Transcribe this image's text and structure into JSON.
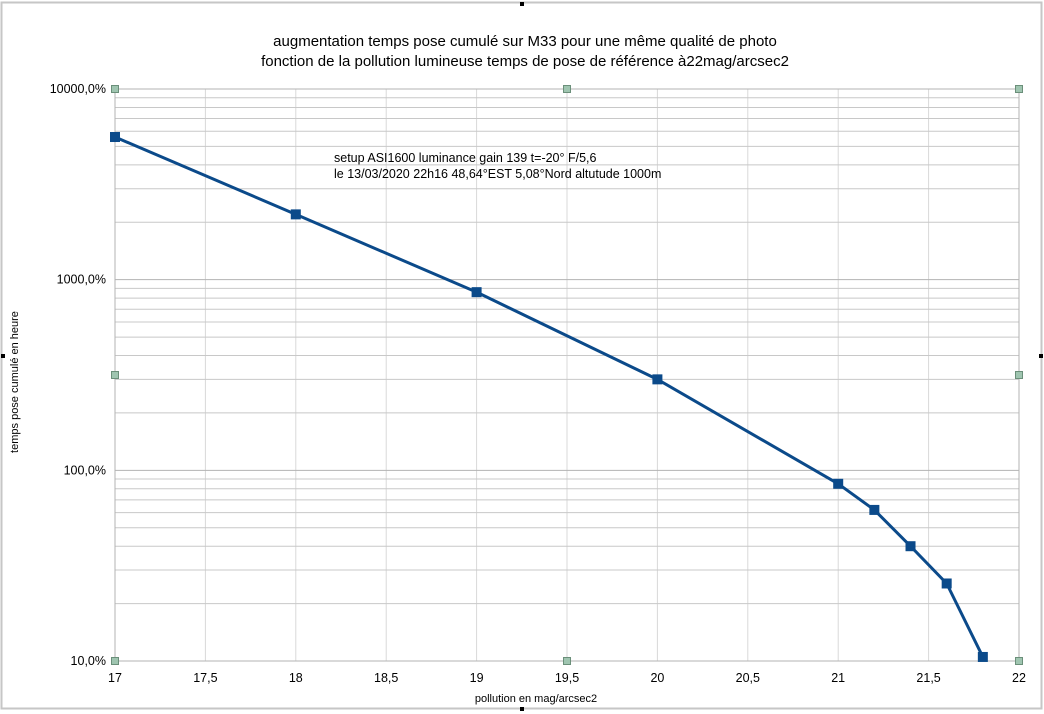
{
  "chart_data": {
    "type": "line",
    "title_lines": [
      "augmentation temps pose cumulé sur M33  pour une même qualité de photo",
      "fonction de la pollution lumineuse temps de pose de référence à22mag/arcsec2"
    ],
    "annotation_lines": [
      "setup ASI1600 luminance gain 139 t=-20° F/5,6",
      "le 13/03/2020 22h16 48,64°EST 5,08°Nord altutude 1000m"
    ],
    "xlabel": "pollution en mag/arcsec2",
    "ylabel": "temps pose cumulé en heure",
    "x_scale": "linear",
    "y_scale": "log",
    "xlim": [
      17,
      22
    ],
    "ylim": [
      10,
      10000
    ],
    "x_tick_labels": [
      "17",
      "17,5",
      "18",
      "18,5",
      "19",
      "19,5",
      "20",
      "20,5",
      "21",
      "21,5",
      "22"
    ],
    "y_tick_labels": [
      "10,0%",
      "100,0%",
      "1000,0%",
      "10000,0%"
    ],
    "grid": true,
    "legend": "none",
    "series": [
      {
        "color": "#0b4a8a",
        "marker": "square",
        "x": [
          17,
          18,
          19,
          20,
          21,
          21.2,
          21.4,
          21.6,
          21.8
        ],
        "y": [
          5600,
          2200,
          860,
          300,
          85,
          62,
          40,
          25.5,
          10.5
        ]
      }
    ]
  }
}
